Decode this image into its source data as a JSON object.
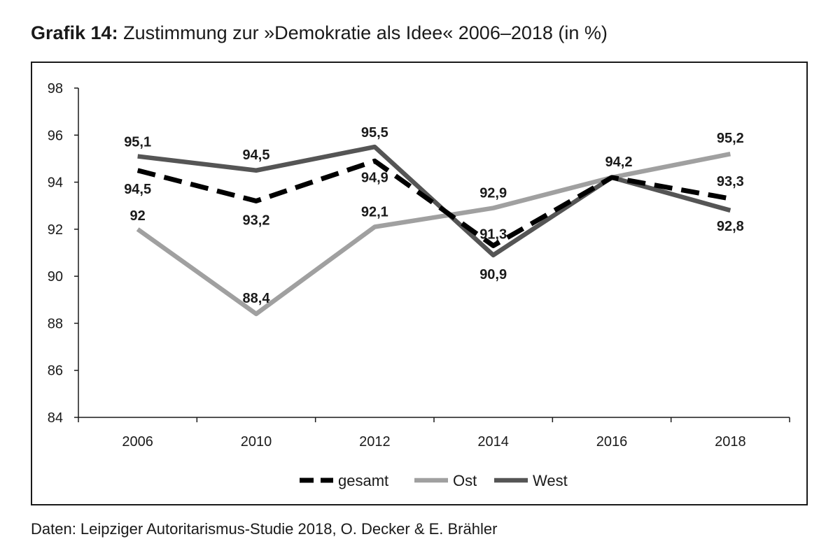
{
  "header": {
    "title_bold": "Grafik 14:",
    "title_rest": "Zustimmung zur »Demokratie als Idee« 2006–2018 (in %)"
  },
  "footer": {
    "source": "Daten: Leipziger Autoritarismus-Studie 2018, O. Decker & E. Brähler"
  },
  "chart_data": {
    "type": "line",
    "title": "Zustimmung zur »Demokratie als Idee« 2006–2018 (in %)",
    "categories": [
      "2006",
      "2010",
      "2012",
      "2014",
      "2016",
      "2018"
    ],
    "ylim": [
      84,
      98
    ],
    "yticks": [
      84,
      86,
      88,
      90,
      92,
      94,
      96,
      98
    ],
    "grid": false,
    "legend_position": "bottom",
    "series": [
      {
        "name": "gesamt",
        "values": [
          94.5,
          93.2,
          94.9,
          91.3,
          94.2,
          93.3
        ],
        "labels": [
          "94,5",
          "93,2",
          "94,9",
          "91,3",
          "",
          "93,3"
        ],
        "color": "#000000",
        "dash": true
      },
      {
        "name": "Ost",
        "values": [
          92.0,
          88.4,
          92.1,
          92.9,
          94.2,
          95.2
        ],
        "labels": [
          "92",
          "88,4",
          "92,1",
          "92,9",
          "94,2",
          "95,2"
        ],
        "color": "#a0a0a0",
        "dash": false
      },
      {
        "name": "West",
        "values": [
          95.1,
          94.5,
          95.5,
          90.9,
          94.2,
          92.8
        ],
        "labels": [
          "95,1",
          "94,5",
          "95,5",
          "90,9",
          "",
          "92,8"
        ],
        "color": "#555555",
        "dash": false
      }
    ]
  }
}
